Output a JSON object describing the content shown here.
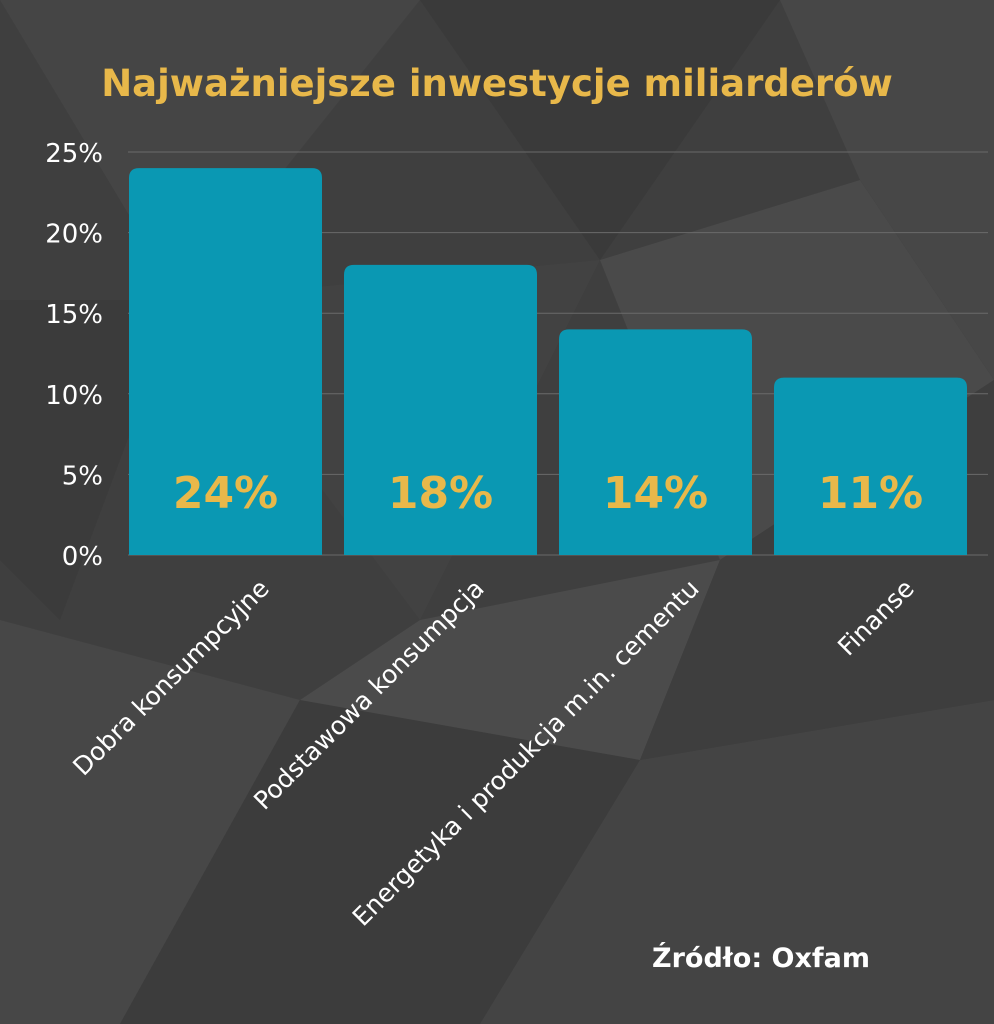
{
  "colors": {
    "background": "#3f3f3f",
    "bar": "#0a98b3",
    "title": "#e8b84a",
    "value_label": "#e8b84a",
    "axis_text": "#ffffff",
    "grid": "#6a6a6a"
  },
  "chart_data": {
    "type": "bar",
    "title": "Najważniejsze inwestycje miliarderów",
    "categories": [
      "Dobra konsumpcyjne",
      "Podstawowa konsumpcja",
      "Energetyka i produkcja m.in. cementu",
      "Finanse"
    ],
    "values": [
      24,
      18,
      14,
      11
    ],
    "value_labels": [
      "24%",
      "18%",
      "14%",
      "11%"
    ],
    "yticks": [
      "0%",
      "5%",
      "10%",
      "15%",
      "20%",
      "25%"
    ],
    "ylim": [
      0,
      25
    ],
    "grid": true,
    "legend": "none",
    "source": "Źródło: Oxfam"
  }
}
